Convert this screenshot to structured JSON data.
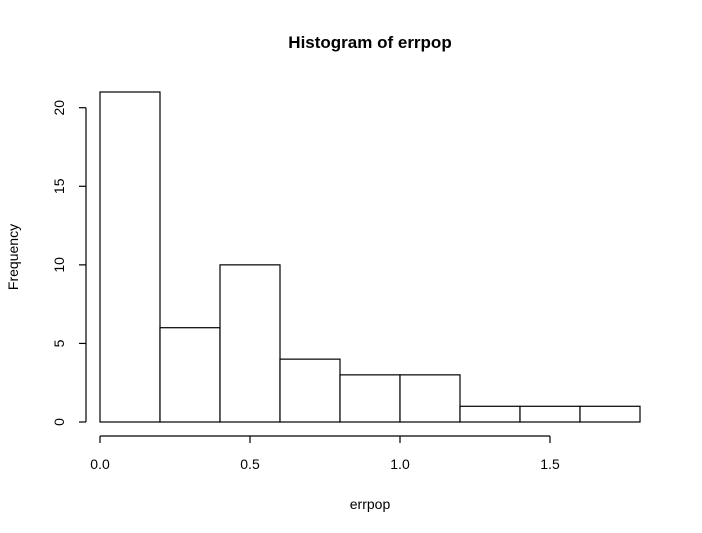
{
  "chart_data": {
    "type": "bar",
    "title": "Histogram of errpop",
    "xlabel": "errpop",
    "ylabel": "Frequency",
    "bins": [
      {
        "x0": 0.0,
        "x1": 0.2,
        "count": 21
      },
      {
        "x0": 0.2,
        "x1": 0.4,
        "count": 6
      },
      {
        "x0": 0.4,
        "x1": 0.6,
        "count": 10
      },
      {
        "x0": 0.6,
        "x1": 0.8,
        "count": 4
      },
      {
        "x0": 0.8,
        "x1": 1.0,
        "count": 3
      },
      {
        "x0": 1.0,
        "x1": 1.2,
        "count": 3
      },
      {
        "x0": 1.2,
        "x1": 1.4,
        "count": 1
      },
      {
        "x0": 1.4,
        "x1": 1.6,
        "count": 1
      },
      {
        "x0": 1.6,
        "x1": 1.8,
        "count": 1
      }
    ],
    "xlim": [
      0.0,
      1.8
    ],
    "ylim": [
      0,
      21
    ],
    "x_ticks": [
      {
        "value": 0.0,
        "label": "0.0"
      },
      {
        "value": 0.5,
        "label": "0.5"
      },
      {
        "value": 1.0,
        "label": "1.0"
      },
      {
        "value": 1.5,
        "label": "1.5"
      }
    ],
    "y_ticks": [
      {
        "value": 0,
        "label": "0"
      },
      {
        "value": 5,
        "label": "5"
      },
      {
        "value": 10,
        "label": "10"
      },
      {
        "value": 15,
        "label": "15"
      },
      {
        "value": 20,
        "label": "20"
      }
    ],
    "grid": false,
    "legend": "none",
    "bar_fill": "#ffffff",
    "bar_stroke": "#000000"
  }
}
